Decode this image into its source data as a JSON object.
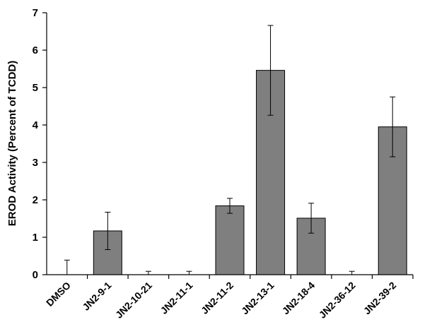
{
  "chart_data": {
    "type": "bar",
    "title": "",
    "xlabel": "",
    "ylabel": "EROD Activity (Percent of TCDD)",
    "ylim": [
      0,
      7
    ],
    "yticks": [
      "0",
      "1",
      "2",
      "3",
      "4",
      "5",
      "6",
      "7"
    ],
    "categories": [
      "DMSO",
      "JN2-9-1",
      "JN2-10-21",
      "JN2-11-1",
      "JN2-11-2",
      "JN2-13-1",
      "JN2-18-4",
      "JN2-36-12",
      "JN2-39-2"
    ],
    "values": [
      0,
      1.17,
      0,
      0,
      1.84,
      5.46,
      1.51,
      0,
      3.95
    ],
    "error_upper": [
      0.39,
      0.5,
      0.09,
      0.09,
      0.2,
      1.2,
      0.4,
      0.09,
      0.8
    ],
    "error_lower": [
      0,
      0.5,
      0,
      0,
      0.2,
      1.2,
      0.4,
      0,
      0.8
    ],
    "bar_color": "#7f7f7f",
    "grid": false,
    "legend": "none"
  }
}
